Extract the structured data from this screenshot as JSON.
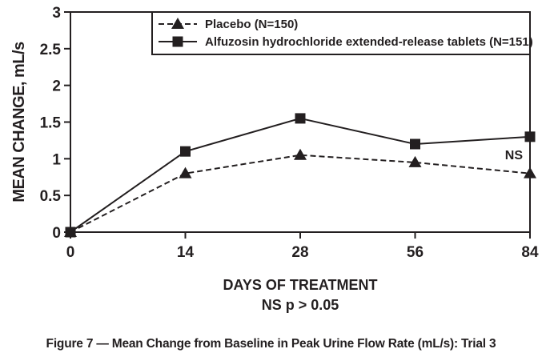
{
  "colors": {
    "ink": "#231f20",
    "background": "#ffffff"
  },
  "chart_data": {
    "type": "line",
    "categories": [
      "0",
      "14",
      "28",
      "56",
      "84"
    ],
    "series": [
      {
        "name": "Placebo (N=150)",
        "marker": "triangle",
        "line": "dashed",
        "values": [
          0,
          0.8,
          1.05,
          0.95,
          0.8
        ]
      },
      {
        "name": "Alfuzosin hydrochloride extended-release tablets (N=151)",
        "marker": "square",
        "line": "solid",
        "values": [
          0,
          1.1,
          1.55,
          1.2,
          1.3
        ]
      }
    ],
    "ylabel": "MEAN CHANGE, mL/s",
    "xlabel": "DAYS OF TREATMENT",
    "footnote": "NS p > 0.05",
    "ylim": [
      0,
      3
    ],
    "ytick_step": 0.5,
    "yticks": [
      "0",
      "0.5",
      "1",
      "1.5",
      "2",
      "2.5",
      "3"
    ],
    "grid": false,
    "legend_position": "top-inside-framed",
    "annotation": {
      "text": "NS",
      "at_category": "84"
    },
    "title": "Figure 7 — Mean Change from Baseline in Peak Urine Flow Rate (mL/s): Trial 3"
  }
}
